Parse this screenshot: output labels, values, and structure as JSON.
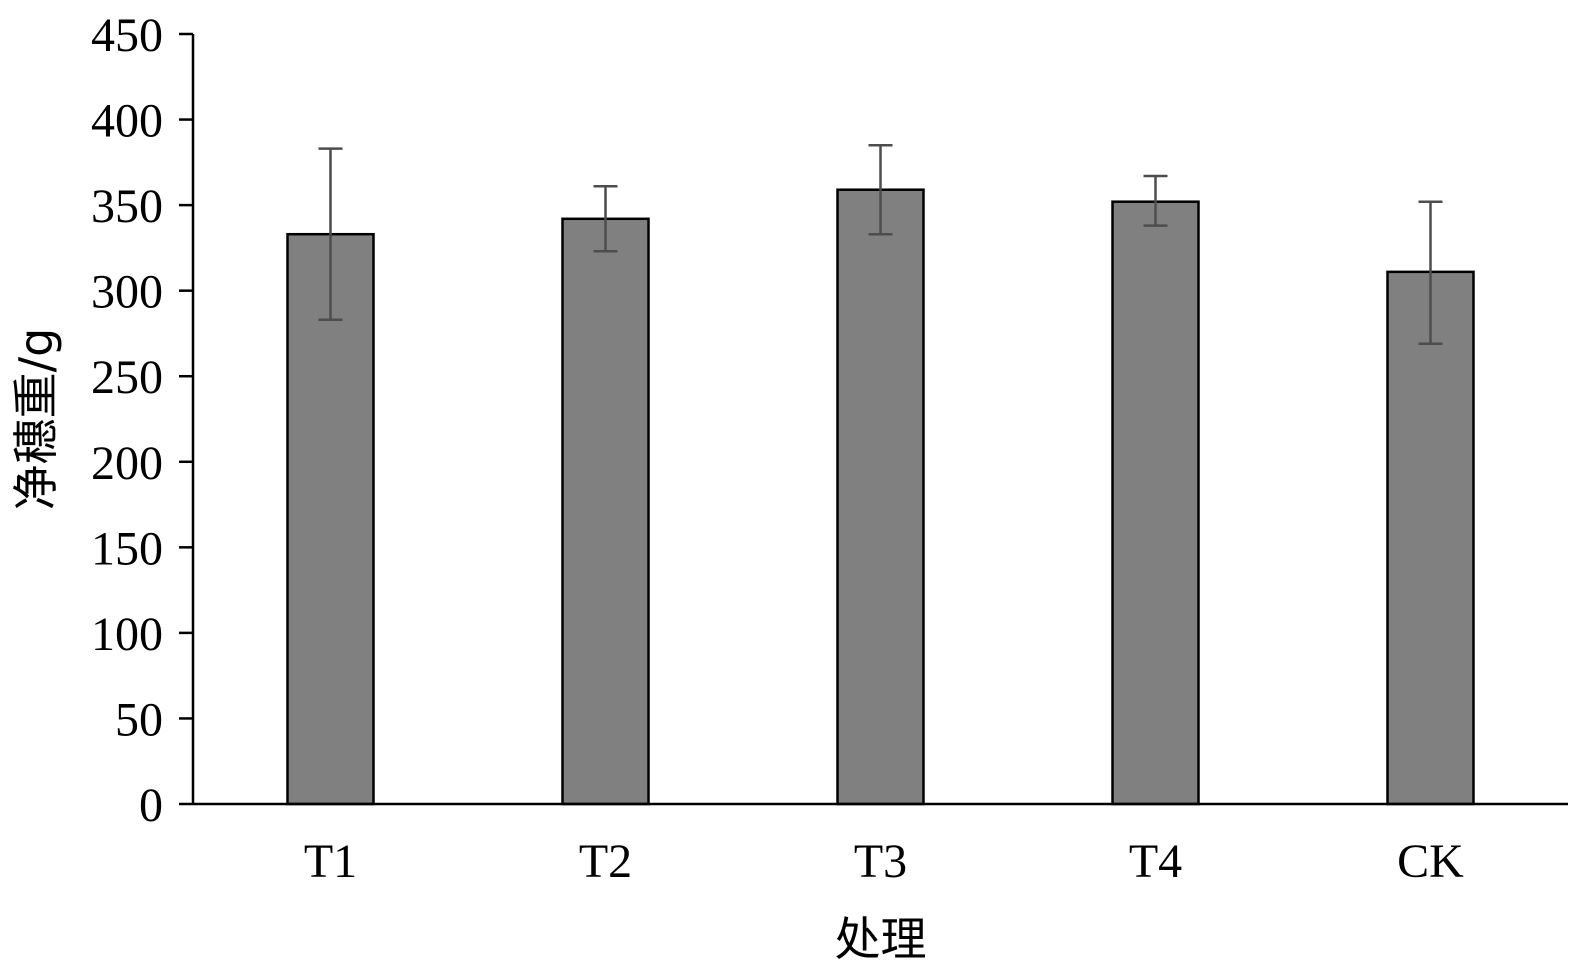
{
  "chart_data": {
    "type": "bar",
    "title": "",
    "xlabel": "处理",
    "ylabel": "净穗重/g",
    "categories": [
      "T1",
      "T2",
      "T3",
      "T4",
      "CK"
    ],
    "values": [
      333,
      342,
      359,
      352,
      311
    ],
    "error_low": [
      283,
      323,
      333,
      338,
      269
    ],
    "error_high": [
      383,
      361,
      385,
      367,
      352
    ],
    "ylim": [
      0,
      450
    ],
    "yticks": [
      "0",
      "50",
      "100",
      "150",
      "200",
      "250",
      "300",
      "350",
      "400",
      "450"
    ],
    "grid": false,
    "legend": "none",
    "colors": {
      "bar_fill": "#808080",
      "bar_stroke": "#000000",
      "error_bar": "#4d4d4d",
      "axis": "#000000"
    }
  }
}
